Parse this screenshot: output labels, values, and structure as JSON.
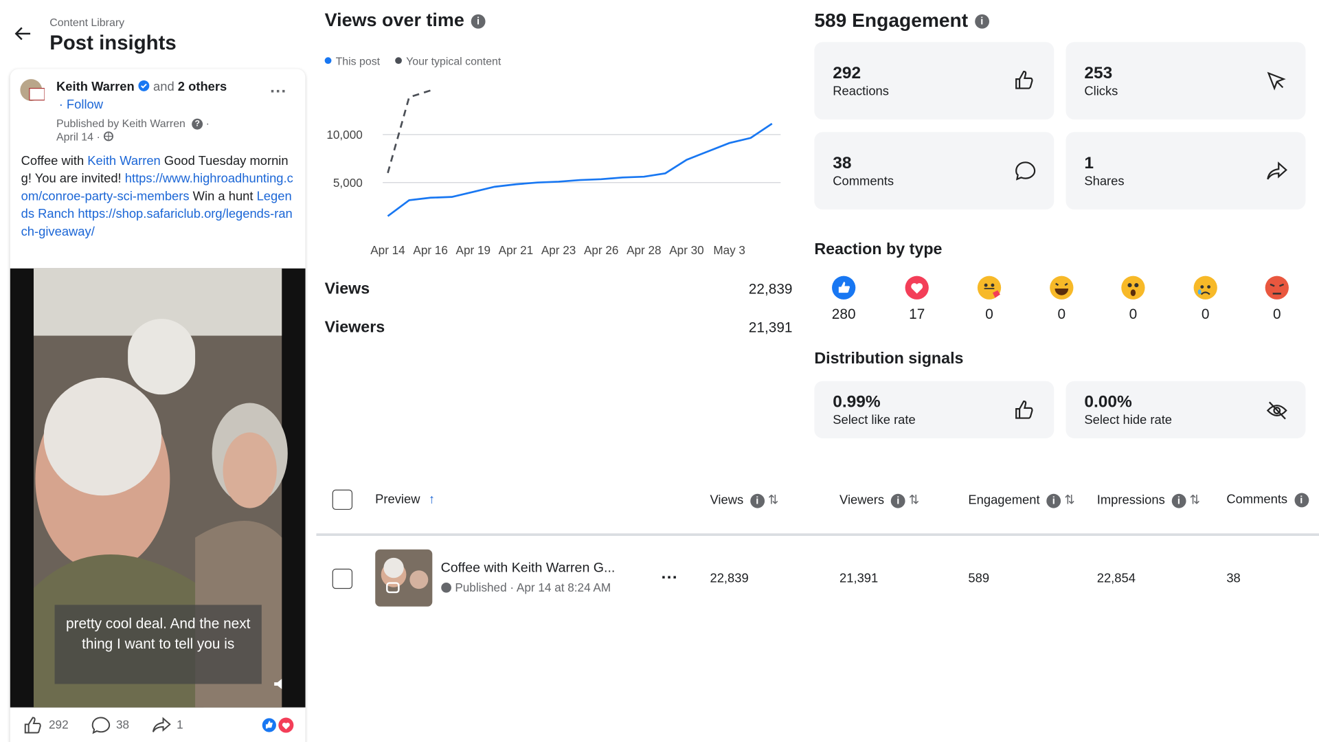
{
  "header": {
    "breadcrumb": "Content Library",
    "title": "Post insights"
  },
  "post": {
    "author": "Keith Warren",
    "and": "and",
    "others": "2 others",
    "follow": "· Follow",
    "published_by": "Published by Keith Warren",
    "date": "April 14 ·",
    "body": [
      "Coffee with ",
      "Keith Warren",
      " Good Tuesday morning! You are invited! ",
      "https://www.highroadhunting.com/conroe-party-sci-members",
      " Win a hunt ",
      "Legends Ranch",
      " https://shop.safariclub.org/legends-ranch-giveaway/"
    ],
    "caption": "pretty cool deal. And the next\nthing I want to tell you is",
    "likes": "292",
    "comments": "38",
    "shares": "1"
  },
  "chart_data": {
    "type": "line",
    "title": "Views over time",
    "categories": [
      "Apr 14",
      null,
      "Apr 16",
      null,
      "Apr 19",
      null,
      "Apr 21",
      null,
      "Apr 23",
      null,
      "Apr 26",
      null,
      "Apr 28",
      null,
      "Apr 30",
      null,
      "May 3",
      null,
      null
    ],
    "series": [
      {
        "name": "This post",
        "color": "#1877f2",
        "dashed": false,
        "values": [
          1500,
          3160,
          3420,
          3500,
          4030,
          4560,
          4820,
          5000,
          5090,
          5260,
          5350,
          5530,
          5610,
          5960,
          7370,
          8250,
          9120,
          9650,
          11140
        ]
      },
      {
        "name": "Your typical content",
        "color": "#4b4f56",
        "dashed": true,
        "values": [
          6000,
          13900,
          14600,
          null,
          null,
          null,
          null,
          null,
          null,
          null,
          null,
          null,
          null,
          null,
          null,
          null,
          null,
          null,
          null
        ]
      }
    ],
    "ylim": [
      0,
      16000
    ],
    "yticks": [
      {
        "value": 5000,
        "label": "5,000"
      },
      {
        "value": 10000,
        "label": "10,000"
      }
    ],
    "grid": true
  },
  "stats": [
    {
      "label": "Views",
      "value": "22,839"
    },
    {
      "label": "Viewers",
      "value": "21,391"
    }
  ],
  "engagement": {
    "title": "589 Engagement",
    "cards": [
      {
        "value": "292",
        "label": "Reactions"
      },
      {
        "value": "253",
        "label": "Clicks"
      },
      {
        "value": "38",
        "label": "Comments"
      },
      {
        "value": "1",
        "label": "Shares"
      }
    ]
  },
  "reactions": {
    "title": "Reaction by type",
    "counts": [
      "280",
      "17",
      "0",
      "0",
      "0",
      "0",
      "0"
    ]
  },
  "distribution": {
    "title": "Distribution signals",
    "cards": [
      {
        "value": "0.99%",
        "label": "Select like rate"
      },
      {
        "value": "0.00%",
        "label": "Select hide rate"
      }
    ]
  },
  "table": {
    "headers": [
      "Preview",
      "Views",
      "Viewers",
      "Engagement",
      "Impressions",
      "Comments"
    ],
    "row": {
      "title": "Coffee with Keith Warren G...",
      "status": "Published",
      "date": "Apr 14 at 8:24 AM",
      "cells": [
        "22,839",
        "21,391",
        "589",
        "22,854",
        "38"
      ]
    }
  }
}
